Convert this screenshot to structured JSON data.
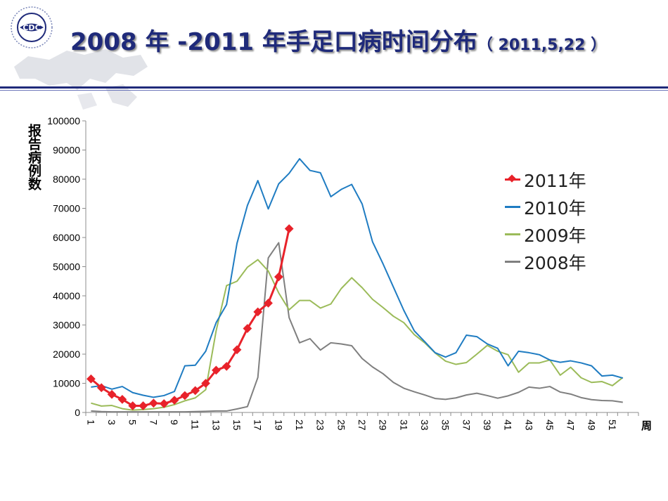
{
  "header": {
    "title_main": "2008 年 -2011 年手足口病时间分布",
    "title_date": "（ 2011,5,22 ）",
    "logo_text": "CDC"
  },
  "colors": {
    "title": "#1f2a7a",
    "y2011": "#e8222a",
    "y2010": "#1f7cc2",
    "y2009": "#9bbb59",
    "y2008": "#7f7f7f"
  },
  "chart_data": {
    "type": "line",
    "ylabel": "报告病例数",
    "xlabel": "周",
    "ylim": [
      0,
      100000
    ],
    "yticks": [
      0,
      10000,
      20000,
      30000,
      40000,
      50000,
      60000,
      70000,
      80000,
      90000,
      100000
    ],
    "xlim": [
      1,
      53
    ],
    "xtick_labels": [
      "1",
      "3",
      "5",
      "7",
      "9",
      "11",
      "13",
      "15",
      "17",
      "19",
      "21",
      "23",
      "25",
      "27",
      "29",
      "31",
      "33",
      "35",
      "37",
      "39",
      "41",
      "43",
      "45",
      "47",
      "49",
      "51"
    ],
    "legend_position": "right",
    "series": [
      {
        "name": "2011年",
        "color": "#e8222a",
        "marker": "diamond",
        "values": [
          11500,
          8500,
          6200,
          4500,
          2300,
          2300,
          3200,
          3000,
          4200,
          5800,
          7500,
          10000,
          14500,
          15800,
          21500,
          28800,
          34500,
          37500,
          46500,
          63000
        ]
      },
      {
        "name": "2010年",
        "color": "#1f7cc2",
        "marker": "none",
        "values": [
          8700,
          9200,
          8000,
          8900,
          6800,
          5900,
          5200,
          5800,
          7200,
          16000,
          16200,
          21000,
          30800,
          37000,
          58000,
          71000,
          79500,
          69800,
          78400,
          82000,
          87000,
          83000,
          82200,
          74000,
          76500,
          78200,
          71500,
          58500,
          51000,
          43000,
          35000,
          28000,
          24300,
          20500,
          19000,
          20500,
          26500,
          26000,
          23500,
          22000,
          16000,
          21000,
          20500,
          19800,
          18000,
          17200,
          17700,
          17000,
          16000,
          12500,
          12800,
          11800
        ]
      },
      {
        "name": "2009年",
        "color": "#9bbb59",
        "marker": "none",
        "values": [
          3200,
          2200,
          2400,
          1300,
          800,
          1000,
          1300,
          1800,
          2700,
          4000,
          5000,
          7800,
          28000,
          43500,
          45000,
          49800,
          52400,
          48500,
          41000,
          35200,
          38400,
          38400,
          35800,
          37200,
          42500,
          46200,
          42800,
          38800,
          36000,
          33000,
          30800,
          26700,
          23900,
          20400,
          17600,
          16500,
          17100,
          20000,
          23000,
          21000,
          19800,
          13800,
          17000,
          17000,
          18000,
          12800,
          15500,
          11900,
          10300,
          10600,
          9200,
          12000
        ]
      },
      {
        "name": "2008年",
        "color": "#7f7f7f",
        "marker": "none",
        "values": [
          500,
          300,
          200,
          200,
          200,
          200,
          200,
          200,
          200,
          200,
          300,
          400,
          500,
          500,
          1200,
          2000,
          12000,
          53000,
          58200,
          32500,
          23900,
          25300,
          21400,
          23900,
          23500,
          22900,
          18500,
          15600,
          13300,
          10300,
          8300,
          7100,
          6000,
          4800,
          4500,
          5000,
          6000,
          6600,
          5800,
          4900,
          5700,
          6900,
          8700,
          8300,
          8900,
          7000,
          6300,
          5100,
          4400,
          4100,
          4000,
          3500
        ]
      }
    ]
  }
}
